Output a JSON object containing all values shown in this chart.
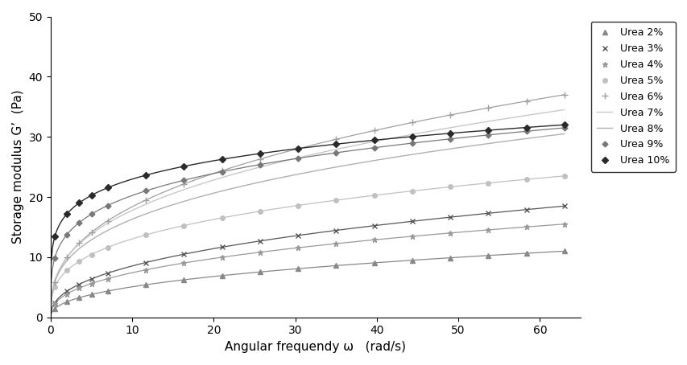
{
  "title": "",
  "xlabel_normal": "Angular frequendy ",
  "xlabel_italic": "ω",
  "xlabel_end": "   (rad/s)",
  "ylabel": "Storage modulus G’  (Pa)",
  "xlim": [
    0,
    65
  ],
  "ylim": [
    0,
    50
  ],
  "xticks": [
    0,
    10,
    20,
    30,
    40,
    50,
    60
  ],
  "yticks": [
    0,
    10,
    20,
    30,
    40,
    50
  ],
  "series": [
    {
      "label": "Urea 2%",
      "color": "#888888",
      "marker": "^",
      "markersize": 4,
      "linewidth": 0.9,
      "end": 11.0,
      "power": 0.42
    },
    {
      "label": "Urea 3%",
      "color": "#555555",
      "marker": "x",
      "markersize": 5,
      "linewidth": 0.9,
      "end": 18.5,
      "power": 0.42
    },
    {
      "label": "Urea 4%",
      "color": "#999999",
      "marker": "*",
      "markersize": 5,
      "linewidth": 0.9,
      "end": 15.5,
      "power": 0.4
    },
    {
      "label": "Urea 5%",
      "color": "#c0c0c0",
      "marker": "o",
      "markersize": 4,
      "linewidth": 0.9,
      "end": 23.5,
      "power": 0.32
    },
    {
      "label": "Urea 6%",
      "color": "#a0a0a0",
      "marker": "+",
      "markersize": 6,
      "linewidth": 0.9,
      "end": 37.0,
      "power": 0.38
    },
    {
      "label": "Urea 7%",
      "color": "#c8c8c8",
      "marker": "None",
      "markersize": 4,
      "linewidth": 1.0,
      "end": 34.5,
      "power": 0.36
    },
    {
      "label": "Urea 8%",
      "color": "#b0b0b0",
      "marker": "None",
      "markersize": 4,
      "linewidth": 1.0,
      "end": 30.5,
      "power": 0.34
    },
    {
      "label": "Urea 9%",
      "color": "#787878",
      "marker": "D",
      "markersize": 3.5,
      "linewidth": 0.9,
      "end": 31.5,
      "power": 0.24
    },
    {
      "label": "Urea 10%",
      "color": "#2a2a2a",
      "marker": "D",
      "markersize": 4,
      "linewidth": 1.0,
      "end": 32.0,
      "power": 0.18
    }
  ],
  "background_color": "#ffffff",
  "legend_fontsize": 9,
  "axis_fontsize": 11,
  "tick_fontsize": 10
}
